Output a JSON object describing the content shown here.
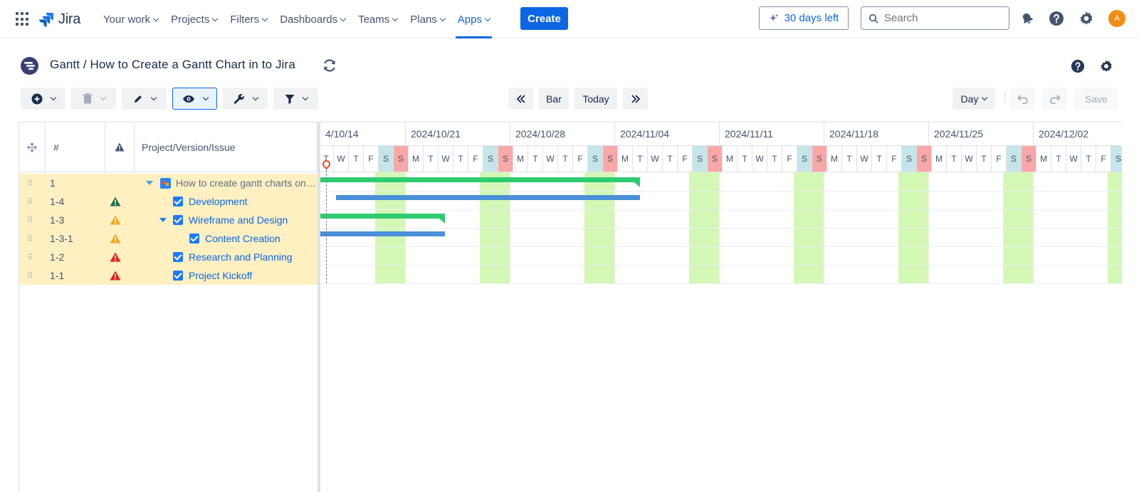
{
  "nav": {
    "logo_text": "Jira",
    "items": [
      {
        "label": "Your work"
      },
      {
        "label": "Projects"
      },
      {
        "label": "Filters"
      },
      {
        "label": "Dashboards"
      },
      {
        "label": "Teams"
      },
      {
        "label": "Plans"
      },
      {
        "label": "Apps"
      }
    ],
    "create_label": "Create",
    "trial_label": "30 days left",
    "search_placeholder": "Search",
    "avatar_initial": "A",
    "accent_color": "#0c66e4"
  },
  "header": {
    "title": "Gantt / How to Create a Gantt Chart in to Jira"
  },
  "toolbar": {
    "bar_label": "Bar",
    "today_label": "Today",
    "scale_label": "Day",
    "save_label": "Save"
  },
  "grid": {
    "columns": {
      "id": "#",
      "name": "Project/Version/Issue"
    },
    "rows": [
      {
        "id": "1",
        "name": "How to create gantt charts on ...",
        "type": "project",
        "warning": ""
      },
      {
        "id": "1-4",
        "name": "Development",
        "type": "issue",
        "warning": "green"
      },
      {
        "id": "1-3",
        "name": "Wireframe and Design",
        "type": "parent",
        "warning": "orange"
      },
      {
        "id": "1-3-1",
        "name": "Content Creation",
        "type": "subissue",
        "warning": "orange"
      },
      {
        "id": "1-2",
        "name": "Research and Planning",
        "type": "issue",
        "warning": "red"
      },
      {
        "id": "1-1",
        "name": "Project Kickoff",
        "type": "issue",
        "warning": "red"
      }
    ]
  },
  "timeline": {
    "weeks": [
      "4/10/14",
      "2024/10/21",
      "2024/10/28",
      "2024/11/04",
      "2024/11/11",
      "2024/11/18",
      "2024/11/25",
      "2024/12/02"
    ],
    "day_letters": [
      "M",
      "T",
      "W",
      "T",
      "F",
      "S",
      "S"
    ],
    "colors": {
      "summary_bar": "#2ecc71",
      "task_bar": "#4a90d9",
      "weekend_col": "#d3f8b6",
      "saturday": "#c6e5e8",
      "sunday": "#f9a7a7"
    }
  }
}
